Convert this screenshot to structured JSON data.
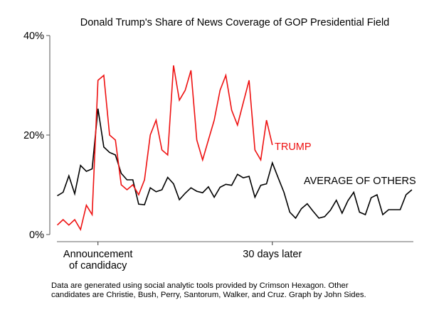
{
  "chart_data": {
    "type": "line",
    "title": "Donald Trump's Share of News Coverage of GOP Presidential Field",
    "xlabel": "",
    "ylabel": "",
    "ylim": [
      0,
      40
    ],
    "xlim": [
      -7,
      54
    ],
    "grid": false,
    "legend": "inline labels at line ends",
    "yticks": [
      {
        "value": 0,
        "label": "0%"
      },
      {
        "value": 20,
        "label": "20%"
      },
      {
        "value": 40,
        "label": "40%"
      }
    ],
    "xticks": [
      {
        "value": 0,
        "label_lines": [
          "Announcement",
          "of candidacy"
        ]
      },
      {
        "value": 30,
        "label_lines": [
          "30 days later"
        ]
      }
    ],
    "x_unit": "days relative to announcement of candidacy",
    "series": [
      {
        "name": "TRUMP",
        "color": "#ee1111",
        "x": [
          -7,
          -6,
          -5,
          -4,
          -3,
          -2,
          -1,
          0,
          1,
          2,
          3,
          4,
          5,
          6,
          7,
          8,
          9,
          10,
          11,
          12,
          13,
          14,
          15,
          16,
          17,
          18,
          19,
          20,
          21,
          22,
          23,
          24,
          25,
          26,
          27,
          28,
          29,
          30
        ],
        "values": [
          1.9,
          3.0,
          1.9,
          3.0,
          1.0,
          5.9,
          4.0,
          31.0,
          32.0,
          20.0,
          19.0,
          10.0,
          9.0,
          10.0,
          8.0,
          11.0,
          20.0,
          23.0,
          17.0,
          16.0,
          34.0,
          27.0,
          29.0,
          33.0,
          19.0,
          15.0,
          19.0,
          23.0,
          29.0,
          32.0,
          25.0,
          22.0,
          26.5,
          31.0,
          17.0,
          15.0,
          23.0,
          18.0
        ]
      },
      {
        "name": "AVERAGE OF OTHERS",
        "color": "#000000",
        "x": [
          -7,
          -6,
          -5,
          -4,
          -3,
          -2,
          -1,
          0,
          1,
          2,
          3,
          4,
          5,
          6,
          7,
          8,
          9,
          10,
          11,
          12,
          13,
          14,
          15,
          16,
          17,
          18,
          19,
          20,
          21,
          22,
          23,
          24,
          25,
          26,
          27,
          28,
          29,
          30,
          31,
          32,
          33,
          34,
          35,
          36,
          37,
          38,
          39,
          40,
          41,
          42,
          43,
          44,
          45,
          46,
          47,
          48,
          49,
          50,
          51,
          52,
          53,
          54
        ],
        "values": [
          7.8,
          8.5,
          11.8,
          8.2,
          13.9,
          12.7,
          13.2,
          25.3,
          17.6,
          16.5,
          16.0,
          12.3,
          11.0,
          11.0,
          6.1,
          6.0,
          9.4,
          8.6,
          9.0,
          11.5,
          10.2,
          7.0,
          8.3,
          9.4,
          8.7,
          8.4,
          9.6,
          7.5,
          9.5,
          10.1,
          9.9,
          12.1,
          11.4,
          11.7,
          7.5,
          9.9,
          10.2,
          14.4,
          11.4,
          8.5,
          4.5,
          3.3,
          5.2,
          6.2,
          4.7,
          3.3,
          3.6,
          4.9,
          6.9,
          4.3,
          6.8,
          8.5,
          4.5,
          4.0,
          7.4,
          8.0,
          4.0,
          5.0,
          5.0,
          5.0,
          8.0,
          9.0
        ]
      }
    ],
    "footnote": [
      "Data are generated using social analytic tools provided by Crimson Hexagon. Other",
      "candidates are Christie, Bush, Perry, Santorum, Walker, and Cruz. Graph by John Sides."
    ]
  }
}
